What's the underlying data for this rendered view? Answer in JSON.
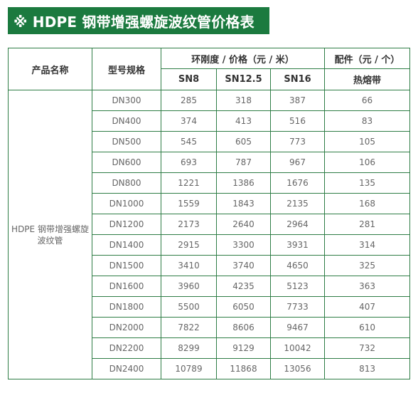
{
  "title": "※ HDPE 钢带增强螺旋波纹管价格表",
  "colors": {
    "banner_bg": "#1b7a3f",
    "border": "#2e7d45"
  },
  "header": {
    "product_name": "产品名称",
    "model_spec": "型号规格",
    "stiffness_price": "环刚度 / 价格（元 / 米）",
    "accessory": "配件（元 / 个）",
    "sn8": "SN8",
    "sn12_5": "SN12.5",
    "sn16": "SN16",
    "hot_melt_belt": "热熔带"
  },
  "product_name_value": "HDPE 钢带增强螺旋波纹管",
  "rows": [
    {
      "spec": "DN300",
      "sn8": "285",
      "sn12_5": "318",
      "sn16": "387",
      "belt": "66"
    },
    {
      "spec": "DN400",
      "sn8": "374",
      "sn12_5": "413",
      "sn16": "516",
      "belt": "83"
    },
    {
      "spec": "DN500",
      "sn8": "545",
      "sn12_5": "605",
      "sn16": "773",
      "belt": "105"
    },
    {
      "spec": "DN600",
      "sn8": "693",
      "sn12_5": "787",
      "sn16": "967",
      "belt": "106"
    },
    {
      "spec": "DN800",
      "sn8": "1221",
      "sn12_5": "1386",
      "sn16": "1676",
      "belt": "135"
    },
    {
      "spec": "DN1000",
      "sn8": "1559",
      "sn12_5": "1843",
      "sn16": "2135",
      "belt": "168"
    },
    {
      "spec": "DN1200",
      "sn8": "2173",
      "sn12_5": "2640",
      "sn16": "2964",
      "belt": "281"
    },
    {
      "spec": "DN1400",
      "sn8": "2915",
      "sn12_5": "3300",
      "sn16": "3931",
      "belt": "314"
    },
    {
      "spec": "DN1500",
      "sn8": "3410",
      "sn12_5": "3740",
      "sn16": "4650",
      "belt": "325"
    },
    {
      "spec": "DN1600",
      "sn8": "3960",
      "sn12_5": "4235",
      "sn16": "5123",
      "belt": "363"
    },
    {
      "spec": "DN1800",
      "sn8": "5500",
      "sn12_5": "6050",
      "sn16": "7733",
      "belt": "407"
    },
    {
      "spec": "DN2000",
      "sn8": "7822",
      "sn12_5": "8606",
      "sn16": "9467",
      "belt": "610"
    },
    {
      "spec": "DN2200",
      "sn8": "8299",
      "sn12_5": "9129",
      "sn16": "10042",
      "belt": "732"
    },
    {
      "spec": "DN2400",
      "sn8": "10789",
      "sn12_5": "11868",
      "sn16": "13056",
      "belt": "813"
    }
  ]
}
